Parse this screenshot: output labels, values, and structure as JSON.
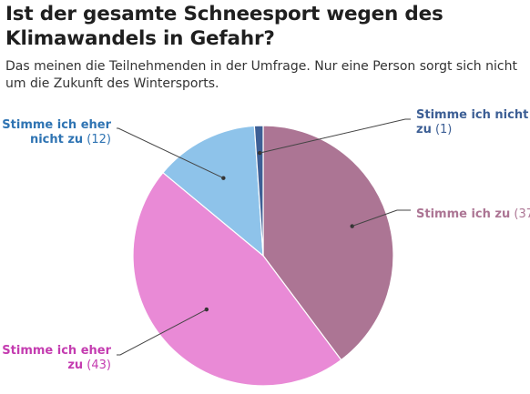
{
  "header": {
    "title": "Ist der gesamte Schneesport wegen des Klimawandels in Gefahr?",
    "subtitle": "Das meinen die Teilnehmenden in der Umfrage. Nur eine Person sorgt sich nicht um die Zukunft des Wintersports."
  },
  "chart_data": {
    "type": "pie",
    "title": "Ist der gesamte Schneesport wegen des Klimawandels in Gefahr?",
    "subtitle": "Das meinen die Teilnehmenden in der Umfrage. Nur eine Person sorgt sich nicht um die Zukunft des Wintersports.",
    "slices": [
      {
        "label": "Stimme ich zu",
        "value": 37,
        "color": "#ac7594",
        "labelColor": "#ac7594",
        "lines": [
          "Stimme ich zu"
        ],
        "countLine": 0,
        "side": "right"
      },
      {
        "label": "Stimme ich eher zu",
        "value": 43,
        "color": "#e98ad6",
        "labelColor": "#c43cb0",
        "lines": [
          "Stimme ich eher",
          "zu"
        ],
        "countLine": 1,
        "side": "left"
      },
      {
        "label": "Stimme ich eher nicht zu",
        "value": 12,
        "color": "#8ec3ea",
        "labelColor": "#2f74b3",
        "lines": [
          "Stimme ich eher",
          "nicht zu"
        ],
        "countLine": 1,
        "side": "left"
      },
      {
        "label": "Stimme ich nicht zu",
        "value": 1,
        "color": "#3d5f95",
        "labelColor": "#3d5f95",
        "lines": [
          "Stimme ich nicht",
          "zu"
        ],
        "countLine": 1,
        "side": "right"
      }
    ]
  }
}
